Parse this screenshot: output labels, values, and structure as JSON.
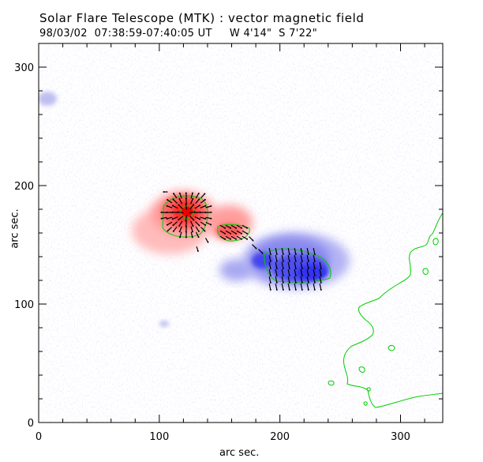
{
  "header": {
    "title": "Solar Flare Telescope (MTK) : vector magnetic field",
    "subtitle": "98/03/02  07:38:59-07:40:05 UT     W 4'14\"  S 7'22\""
  },
  "axes": {
    "xlabel": "arc sec.",
    "ylabel": "arc sec.",
    "xlim": [
      0,
      335
    ],
    "ylim": [
      0,
      320
    ],
    "xticks": [
      0,
      100,
      200,
      300
    ],
    "yticks": [
      0,
      100,
      200,
      300
    ]
  },
  "colors": {
    "positive_field": "#ff3030",
    "negative_field": "#3030ff",
    "contour": "#00cc00",
    "vectors": "#000000"
  }
}
